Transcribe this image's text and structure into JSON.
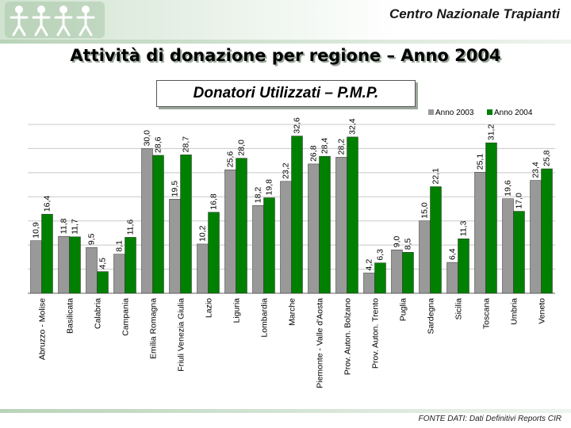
{
  "header": {
    "org_name": "Centro Nazionale Trapianti",
    "logo_icon": "people-figures-logo-icon"
  },
  "page": {
    "title": "Attività di donazione per regione – Anno 2004"
  },
  "footer": {
    "source": "FONTE DATI: Dati Definitivi Reports CIR"
  },
  "chart_data": {
    "type": "bar",
    "title": "Donatori Utilizzati – P.M.P.",
    "xlabel": "",
    "ylabel": "",
    "ylim": [
      0,
      35
    ],
    "grid": true,
    "legend_position": "top-right",
    "categories": [
      "Abruzzo - Molise",
      "Basilicata",
      "Calabria",
      "Campania",
      "Emilia Romagna",
      "Friuli Venezia Giulia",
      "Lazio",
      "Liguria",
      "Lombardia",
      "Marche",
      "Piemonte - Valle d'Aosta",
      "Prov. Auton. Bolzano",
      "Prov. Auton. Trento",
      "Puglia",
      "Sardegna",
      "Sicilia",
      "Toscana",
      "Umbria",
      "Veneto"
    ],
    "series": [
      {
        "name": "Anno 2003",
        "color": "#999999",
        "values": [
          10.9,
          11.8,
          9.5,
          8.1,
          30.0,
          19.5,
          10.2,
          25.6,
          18.2,
          23.2,
          26.8,
          28.2,
          4.2,
          9.0,
          15.0,
          6.4,
          25.1,
          19.6,
          23.4
        ],
        "labels": [
          "10,9",
          "11,8",
          "9,5",
          "8,1",
          "30,0",
          "19,5",
          "10,2",
          "25,6",
          "18,2",
          "23,2",
          "26,8",
          "28,2",
          "4,2",
          "9,0",
          "15,0",
          "6,4",
          "25,1",
          "19,6",
          "23,4"
        ]
      },
      {
        "name": "Anno 2004",
        "color": "#008000",
        "values": [
          16.4,
          11.7,
          4.5,
          11.6,
          28.6,
          28.7,
          16.8,
          28.0,
          19.8,
          32.6,
          28.4,
          32.4,
          6.3,
          8.5,
          22.1,
          11.3,
          31.2,
          17.0,
          25.8
        ],
        "labels": [
          "16,4",
          "11,7",
          "4,5",
          "11,6",
          "28,6",
          "28,7",
          "16,8",
          "28,0",
          "19,8",
          "32,6",
          "28,4",
          "32,4",
          "6,3",
          "8,5",
          "22,1",
          "11,3",
          "31,2",
          "17,0",
          "25,8"
        ]
      }
    ]
  }
}
